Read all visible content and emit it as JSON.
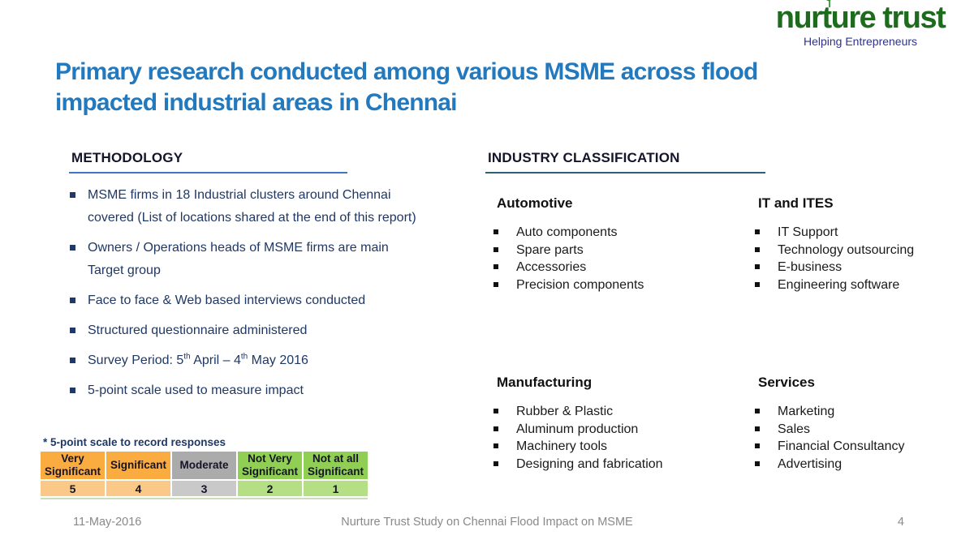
{
  "logo": {
    "name": "nurture trust",
    "tagline": "Helping Entrepreneurs"
  },
  "title": "Primary research conducted among various MSME across flood impacted industrial areas in Chennai",
  "methodology": {
    "heading": "METHODOLOGY",
    "items": [
      {
        "segments": [
          {
            "text": "MSME firms in 18 Industrial clusters around Chennai covered (List of locations shared at the end of this report)"
          }
        ]
      },
      {
        "segments": [
          {
            "text": "Owners / Operations heads of MSME firms are main Target group"
          }
        ]
      },
      {
        "segments": [
          {
            "text": "Face to face & Web based interviews conducted"
          }
        ]
      },
      {
        "segments": [
          {
            "text": "Structured questionnaire administered"
          }
        ]
      },
      {
        "segments": [
          {
            "text": "Survey Period: 5"
          },
          {
            "text": "th",
            "sup": true
          },
          {
            "text": " April – 4"
          },
          {
            "text": "th",
            "sup": true
          },
          {
            "text": " May 2016"
          }
        ]
      },
      {
        "segments": [
          {
            "text": "5-point scale used to measure impact"
          }
        ]
      }
    ]
  },
  "industry": {
    "heading": "INDUSTRY CLASSIFICATION",
    "categories": [
      {
        "name": "Automotive",
        "items": [
          "Auto components",
          "Spare parts",
          "Accessories",
          "Precision components"
        ]
      },
      {
        "name": "IT and ITES",
        "items": [
          "IT Support",
          "Technology outsourcing",
          "E-business",
          "Engineering software"
        ]
      },
      {
        "name": "Manufacturing",
        "items": [
          "Rubber & Plastic",
          "Aluminum production",
          "Machinery tools",
          "Designing and fabrication"
        ]
      },
      {
        "name": "Services",
        "items": [
          "Marketing",
          "Sales",
          "Financial Consultancy",
          "Advertising"
        ]
      }
    ]
  },
  "scale_table": {
    "caption": "* 5-point scale to record responses",
    "columns": [
      {
        "label": "Very Significant",
        "value": "5",
        "header_bg": "#FAAC41",
        "value_bg": "#FBC987"
      },
      {
        "label": "Significant",
        "value": "4",
        "header_bg": "#FAAC41",
        "value_bg": "#FBC987"
      },
      {
        "label": "Moderate",
        "value": "3",
        "header_bg": "#ABABAB",
        "value_bg": "#C9C9C9"
      },
      {
        "label": "Not Very Significant",
        "value": "2",
        "header_bg": "#90CF54",
        "value_bg": "#B5DF85"
      },
      {
        "label": "Not at all Significant",
        "value": "1",
        "header_bg": "#90CF54",
        "value_bg": "#B5DF85"
      }
    ]
  },
  "footer": {
    "date": "11-May-2016",
    "center": "Nurture Trust Study on Chennai Flood Impact on MSME",
    "page": "4"
  },
  "colors": {
    "title": "#2379BE",
    "body_navy": "#1F3864",
    "body_black": "#1A1A1A",
    "heading_dark": "#14142B",
    "methodology_underline": "#4472C4",
    "industry_underline": "#2E5F74",
    "logo_green": "#1E6B1E",
    "tagline_blue": "#2E3192",
    "footer_gray": "#898989"
  }
}
